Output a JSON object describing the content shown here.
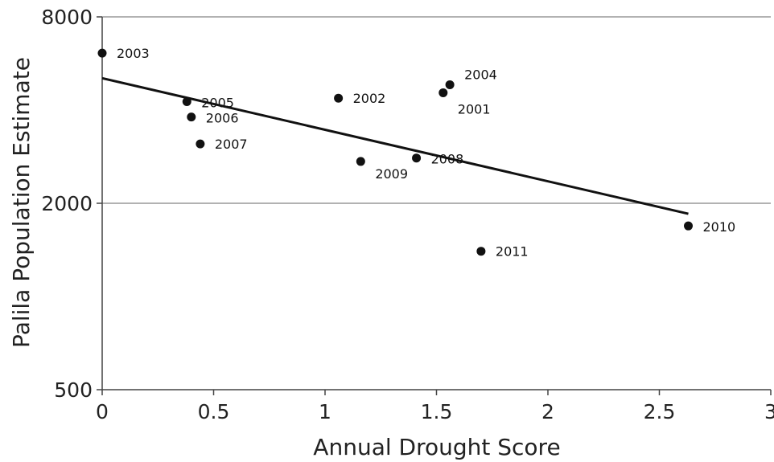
{
  "chart_data": {
    "type": "scatter",
    "xlabel": "Annual Drought Score",
    "ylabel": "Palila Population Estimate",
    "xlim": [
      0,
      3
    ],
    "ylim": [
      500,
      8000
    ],
    "y_scale": "log",
    "x_ticks": [
      0,
      0.5,
      1,
      1.5,
      2,
      2.5,
      3
    ],
    "x_tick_labels": [
      "0",
      "0.5",
      "1",
      "1.5",
      "2",
      "2.5",
      "3"
    ],
    "y_ticks": [
      500,
      2000,
      8000
    ],
    "y_tick_labels": [
      "500",
      "2000",
      "8000"
    ],
    "gridlines_y": [
      2000,
      8000
    ],
    "grid": true,
    "legend": false,
    "colors": {
      "points": "#111111",
      "trendline": "#111111",
      "grid": "#999999",
      "axis": "#444444"
    },
    "points": [
      {
        "label": "2001",
        "x": 1.53,
        "y": 4550
      },
      {
        "label": "2002",
        "x": 1.06,
        "y": 4370
      },
      {
        "label": "2003",
        "x": 0.0,
        "y": 6110
      },
      {
        "label": "2004",
        "x": 1.56,
        "y": 4830
      },
      {
        "label": "2005",
        "x": 0.38,
        "y": 4260
      },
      {
        "label": "2006",
        "x": 0.4,
        "y": 3800
      },
      {
        "label": "2007",
        "x": 0.44,
        "y": 3110
      },
      {
        "label": "2008",
        "x": 1.41,
        "y": 2800
      },
      {
        "label": "2009",
        "x": 1.16,
        "y": 2730
      },
      {
        "label": "2010",
        "x": 2.63,
        "y": 1690
      },
      {
        "label": "2011",
        "x": 1.7,
        "y": 1400
      }
    ],
    "trendline": {
      "x": [
        0,
        2.63
      ],
      "y": [
        5070,
        1850
      ]
    }
  }
}
